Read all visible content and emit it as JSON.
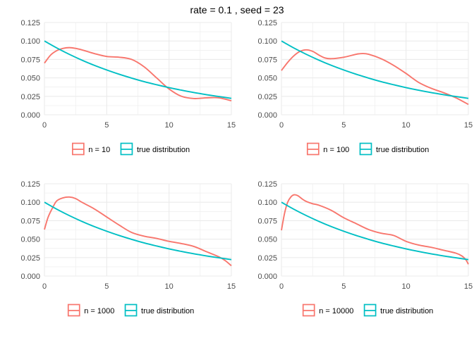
{
  "title": "rate = 0.1 , seed = 23",
  "colors": {
    "sample": "#F8766D",
    "true": "#00BFC4",
    "grid": "#ebebeb"
  },
  "chart_data": [
    {
      "type": "line",
      "xlim": [
        0,
        15
      ],
      "ylim": [
        0,
        0.125
      ],
      "x_ticks": [
        0,
        5,
        10,
        15
      ],
      "y_ticks": [
        0.0,
        0.025,
        0.05,
        0.075,
        0.1,
        0.125
      ],
      "y_tick_labels": [
        "0.000",
        "0.025",
        "0.050",
        "0.075",
        "0.100",
        "0.125"
      ],
      "legend": [
        "n = 10",
        "true distribution"
      ],
      "legend_position": "bottom",
      "grid": true,
      "series": [
        {
          "name": "n = 10",
          "color": "sample",
          "x": [
            0,
            0.5,
            1,
            1.5,
            2,
            2.5,
            3,
            4,
            5,
            6,
            7,
            8,
            9,
            10,
            11,
            12,
            13,
            14,
            15
          ],
          "y": [
            0.07,
            0.081,
            0.087,
            0.09,
            0.091,
            0.09,
            0.088,
            0.083,
            0.079,
            0.078,
            0.075,
            0.065,
            0.05,
            0.035,
            0.025,
            0.022,
            0.023,
            0.023,
            0.019
          ]
        },
        {
          "name": "true distribution",
          "color": "true",
          "x": [
            0,
            1,
            2,
            3,
            4,
            5,
            6,
            7,
            8,
            9,
            10,
            11,
            12,
            13,
            14,
            15
          ],
          "y": [
            0.1,
            0.0905,
            0.0819,
            0.0741,
            0.067,
            0.0607,
            0.0549,
            0.0497,
            0.0449,
            0.0407,
            0.0368,
            0.0333,
            0.0301,
            0.0273,
            0.0247,
            0.0223
          ]
        }
      ]
    },
    {
      "type": "line",
      "xlim": [
        0,
        15
      ],
      "ylim": [
        0,
        0.125
      ],
      "x_ticks": [
        0,
        5,
        10,
        15
      ],
      "y_ticks": [
        0.0,
        0.025,
        0.05,
        0.075,
        0.1,
        0.125
      ],
      "y_tick_labels": [
        "0.000",
        "0.025",
        "0.050",
        "0.075",
        "0.100",
        "0.125"
      ],
      "legend": [
        "n = 100",
        "true distribution"
      ],
      "legend_position": "bottom",
      "grid": true,
      "series": [
        {
          "name": "n = 100",
          "color": "sample",
          "x": [
            0,
            0.5,
            1,
            1.5,
            2,
            2.5,
            3,
            3.5,
            4,
            5,
            6,
            6.5,
            7,
            8,
            9,
            10,
            11,
            12,
            13,
            14,
            15
          ],
          "y": [
            0.06,
            0.071,
            0.08,
            0.086,
            0.088,
            0.086,
            0.081,
            0.077,
            0.076,
            0.078,
            0.082,
            0.083,
            0.082,
            0.076,
            0.067,
            0.056,
            0.044,
            0.036,
            0.03,
            0.023,
            0.014
          ]
        },
        {
          "name": "true distribution",
          "color": "true",
          "x": [
            0,
            1,
            2,
            3,
            4,
            5,
            6,
            7,
            8,
            9,
            10,
            11,
            12,
            13,
            14,
            15
          ],
          "y": [
            0.1,
            0.0905,
            0.0819,
            0.0741,
            0.067,
            0.0607,
            0.0549,
            0.0497,
            0.0449,
            0.0407,
            0.0368,
            0.0333,
            0.0301,
            0.0273,
            0.0247,
            0.0223
          ]
        }
      ]
    },
    {
      "type": "line",
      "xlim": [
        0,
        15
      ],
      "ylim": [
        0,
        0.125
      ],
      "x_ticks": [
        0,
        5,
        10,
        15
      ],
      "y_ticks": [
        0.0,
        0.025,
        0.05,
        0.075,
        0.1,
        0.125
      ],
      "y_tick_labels": [
        "0.000",
        "0.025",
        "0.050",
        "0.075",
        "0.100",
        "0.125"
      ],
      "legend": [
        "n = 1000",
        "true distribution"
      ],
      "legend_position": "bottom",
      "grid": true,
      "series": [
        {
          "name": "n = 1000",
          "color": "sample",
          "x": [
            0,
            0.3,
            0.7,
            1,
            1.5,
            2,
            2.5,
            3,
            4,
            5,
            6,
            7,
            8,
            9,
            10,
            11,
            12,
            13,
            14,
            14.5,
            15
          ],
          "y": [
            0.063,
            0.08,
            0.094,
            0.102,
            0.106,
            0.107,
            0.105,
            0.1,
            0.091,
            0.08,
            0.069,
            0.059,
            0.054,
            0.051,
            0.047,
            0.044,
            0.04,
            0.033,
            0.026,
            0.021,
            0.014
          ]
        },
        {
          "name": "true distribution",
          "color": "true",
          "x": [
            0,
            1,
            2,
            3,
            4,
            5,
            6,
            7,
            8,
            9,
            10,
            11,
            12,
            13,
            14,
            15
          ],
          "y": [
            0.1,
            0.0905,
            0.0819,
            0.0741,
            0.067,
            0.0607,
            0.0549,
            0.0497,
            0.0449,
            0.0407,
            0.0368,
            0.0333,
            0.0301,
            0.0273,
            0.0247,
            0.0223
          ]
        }
      ]
    },
    {
      "type": "line",
      "xlim": [
        0,
        15
      ],
      "ylim": [
        0,
        0.125
      ],
      "x_ticks": [
        0,
        5,
        10,
        15
      ],
      "y_ticks": [
        0.0,
        0.025,
        0.05,
        0.075,
        0.1,
        0.125
      ],
      "y_tick_labels": [
        "0.000",
        "0.025",
        "0.050",
        "0.075",
        "0.100",
        "0.125"
      ],
      "legend": [
        "n = 10000",
        "true distribution"
      ],
      "legend_position": "bottom",
      "grid": true,
      "series": [
        {
          "name": "n = 10000",
          "color": "sample",
          "x": [
            0,
            0.25,
            0.5,
            0.75,
            1,
            1.3,
            1.7,
            2,
            2.5,
            3,
            4,
            5,
            6,
            7,
            8,
            9,
            10,
            11,
            12,
            13,
            14,
            14.5,
            14.8,
            15
          ],
          "y": [
            0.062,
            0.085,
            0.1,
            0.107,
            0.11,
            0.109,
            0.104,
            0.101,
            0.098,
            0.096,
            0.089,
            0.079,
            0.071,
            0.063,
            0.058,
            0.055,
            0.047,
            0.042,
            0.039,
            0.035,
            0.031,
            0.027,
            0.022,
            0.016
          ]
        },
        {
          "name": "true distribution",
          "color": "true",
          "x": [
            0,
            1,
            2,
            3,
            4,
            5,
            6,
            7,
            8,
            9,
            10,
            11,
            12,
            13,
            14,
            15
          ],
          "y": [
            0.1,
            0.0905,
            0.0819,
            0.0741,
            0.067,
            0.0607,
            0.0549,
            0.0497,
            0.0449,
            0.0407,
            0.0368,
            0.0333,
            0.0301,
            0.0273,
            0.0247,
            0.0223
          ]
        }
      ]
    }
  ]
}
